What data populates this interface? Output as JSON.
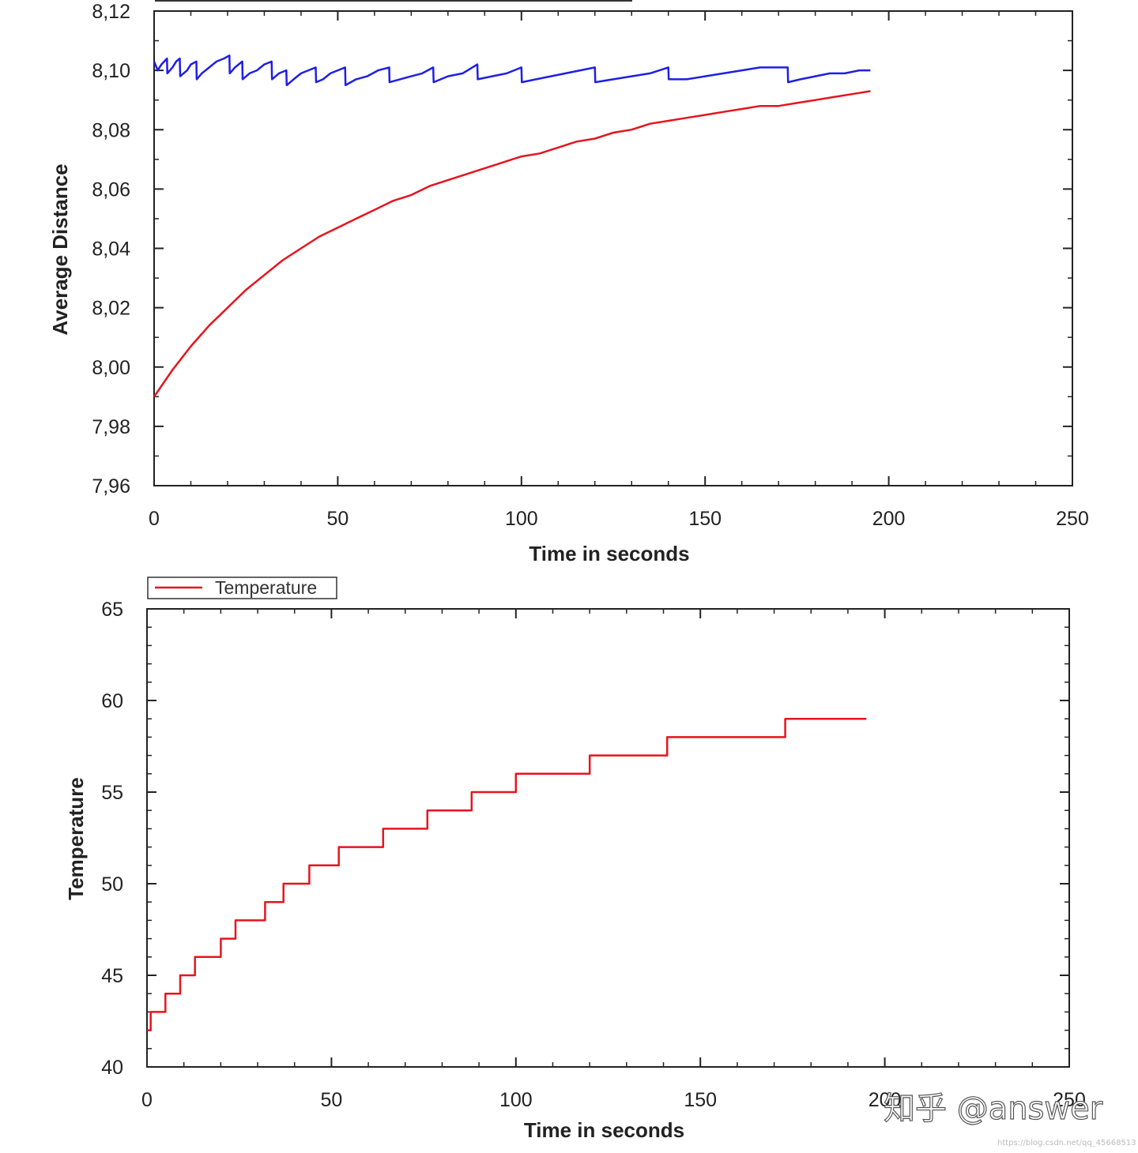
{
  "chart_data": [
    {
      "type": "line",
      "title": "",
      "xlabel": "Time in seconds",
      "ylabel": "Average Distance",
      "xlim": [
        0,
        250
      ],
      "ylim": [
        7.96,
        8.12
      ],
      "x_ticks": [
        "0",
        "50",
        "100",
        "150",
        "200",
        "250"
      ],
      "y_ticks": [
        "7,96",
        "7,98",
        "8,00",
        "8,02",
        "8,04",
        "8,06",
        "8,08",
        "8,10",
        "8,12"
      ],
      "grid": false,
      "series": [
        {
          "color": "#1f1fe6",
          "x": [
            0,
            1,
            2,
            3.5,
            3.6,
            5,
            6,
            7,
            7.1,
            9,
            10,
            11.5,
            11.6,
            13,
            15,
            17,
            19,
            20.5,
            20.6,
            22,
            24,
            24.1,
            26,
            28,
            30,
            32,
            32.1,
            34,
            36,
            36.1,
            38,
            40,
            42,
            44,
            44.1,
            46,
            48,
            50,
            52,
            52.1,
            55,
            58,
            61,
            64,
            64.1,
            67,
            70,
            73,
            76,
            76.1,
            80,
            84,
            88,
            88.1,
            92,
            96,
            100,
            100.1,
            104,
            108,
            112,
            116,
            120,
            120.1,
            125,
            130,
            135,
            140,
            140.1,
            145,
            150,
            155,
            160,
            165,
            170,
            172.5,
            172.6,
            176,
            180,
            184,
            188,
            192,
            195
          ],
          "values": [
            8.103,
            8.1,
            8.102,
            8.104,
            8.099,
            8.101,
            8.103,
            8.104,
            8.098,
            8.1,
            8.102,
            8.103,
            8.097,
            8.099,
            8.101,
            8.103,
            8.104,
            8.105,
            8.099,
            8.101,
            8.103,
            8.097,
            8.099,
            8.1,
            8.102,
            8.103,
            8.097,
            8.099,
            8.1,
            8.095,
            8.097,
            8.099,
            8.1,
            8.101,
            8.096,
            8.097,
            8.099,
            8.1,
            8.101,
            8.095,
            8.097,
            8.098,
            8.1,
            8.101,
            8.096,
            8.097,
            8.098,
            8.099,
            8.101,
            8.096,
            8.098,
            8.099,
            8.102,
            8.097,
            8.098,
            8.099,
            8.101,
            8.096,
            8.097,
            8.098,
            8.099,
            8.1,
            8.101,
            8.096,
            8.097,
            8.098,
            8.099,
            8.101,
            8.097,
            8.097,
            8.098,
            8.099,
            8.1,
            8.101,
            8.101,
            8.101,
            8.096,
            8.097,
            8.098,
            8.099,
            8.099,
            8.1,
            8.1
          ]
        },
        {
          "color": "#e6141e",
          "x": [
            0,
            5,
            10,
            15,
            20,
            25,
            30,
            35,
            40,
            45,
            50,
            55,
            60,
            65,
            70,
            75,
            80,
            85,
            90,
            95,
            100,
            105,
            110,
            115,
            120,
            125,
            130,
            135,
            140,
            145,
            150,
            155,
            160,
            165,
            170,
            175,
            180,
            185,
            190,
            195
          ],
          "values": [
            7.99,
            7.999,
            8.007,
            8.014,
            8.02,
            8.026,
            8.031,
            8.036,
            8.04,
            8.044,
            8.047,
            8.05,
            8.053,
            8.056,
            8.058,
            8.061,
            8.063,
            8.065,
            8.067,
            8.069,
            8.071,
            8.072,
            8.074,
            8.076,
            8.077,
            8.079,
            8.08,
            8.082,
            8.083,
            8.084,
            8.085,
            8.086,
            8.087,
            8.088,
            8.088,
            8.089,
            8.09,
            8.091,
            8.092,
            8.093
          ]
        }
      ]
    },
    {
      "type": "line",
      "title": "",
      "xlabel": "Time in seconds",
      "ylabel": "Temperature",
      "xlim": [
        0,
        250
      ],
      "ylim": [
        40,
        65
      ],
      "x_ticks": [
        "0",
        "50",
        "100",
        "150",
        "200",
        "250"
      ],
      "y_ticks": [
        "40",
        "45",
        "50",
        "55",
        "60",
        "65"
      ],
      "grid": false,
      "legend": {
        "position": "top-left",
        "entries": [
          "Temperature"
        ]
      },
      "series": [
        {
          "name": "Temperature",
          "color": "#e6141e",
          "step": true,
          "x": [
            0,
            1,
            5,
            9,
            13,
            20,
            24,
            32,
            37,
            44,
            52,
            64,
            76,
            88,
            100,
            120,
            141,
            173,
            195
          ],
          "values": [
            42,
            43,
            44,
            45,
            46,
            47,
            48,
            49,
            50,
            51,
            52,
            53,
            54,
            55,
            56,
            57,
            58,
            59,
            59
          ]
        }
      ]
    }
  ],
  "watermark": {
    "text": "知乎 @answer",
    "url_text": "https://blog.csdn.net/qq_45668513"
  }
}
